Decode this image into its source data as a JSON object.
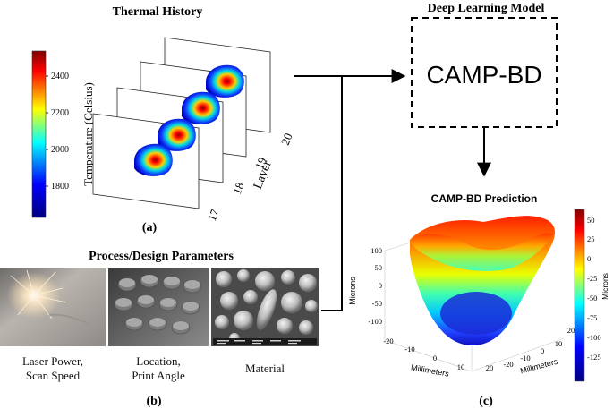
{
  "thermal": {
    "title": "Thermal History",
    "colorbar_label": "Temperature (Celsius)",
    "colorbar_ticks": [
      "2400",
      "2200",
      "2000",
      "1800"
    ],
    "axis_label": "Layer",
    "layers": [
      "17",
      "18",
      "19",
      "20"
    ],
    "panel_label": "(a)"
  },
  "model": {
    "title": "Deep Learning Model",
    "name": "CAMP-BD"
  },
  "params": {
    "title": "Process/Design Parameters",
    "captions": [
      {
        "line1": "Laser Power,",
        "line2": "Scan Speed"
      },
      {
        "line1": "Location,",
        "line2": "Print Angle"
      },
      {
        "line1": "Material",
        "line2": ""
      }
    ],
    "panel_label": "(b)"
  },
  "prediction": {
    "title": "CAMP-BD Prediction",
    "z_label": "Microns",
    "z_ticks": [
      "100",
      "50",
      "0",
      "-50",
      "-100"
    ],
    "colorbar_label": "Microns",
    "colorbar_ticks": [
      "50",
      "25",
      "0",
      "-25",
      "-50",
      "-75",
      "-100",
      "-125"
    ],
    "x_label": "Millimeters",
    "x_ticks": [
      "-20",
      "-10",
      "0",
      "10",
      "20"
    ],
    "y_label": "Millimeters",
    "y_ticks": [
      "-20",
      "-10",
      "0",
      "10",
      "20"
    ],
    "panel_label": "(c)"
  },
  "colors": {
    "arrow": "#000000",
    "hot": "#d7191c",
    "cold": "#1a1aff"
  }
}
